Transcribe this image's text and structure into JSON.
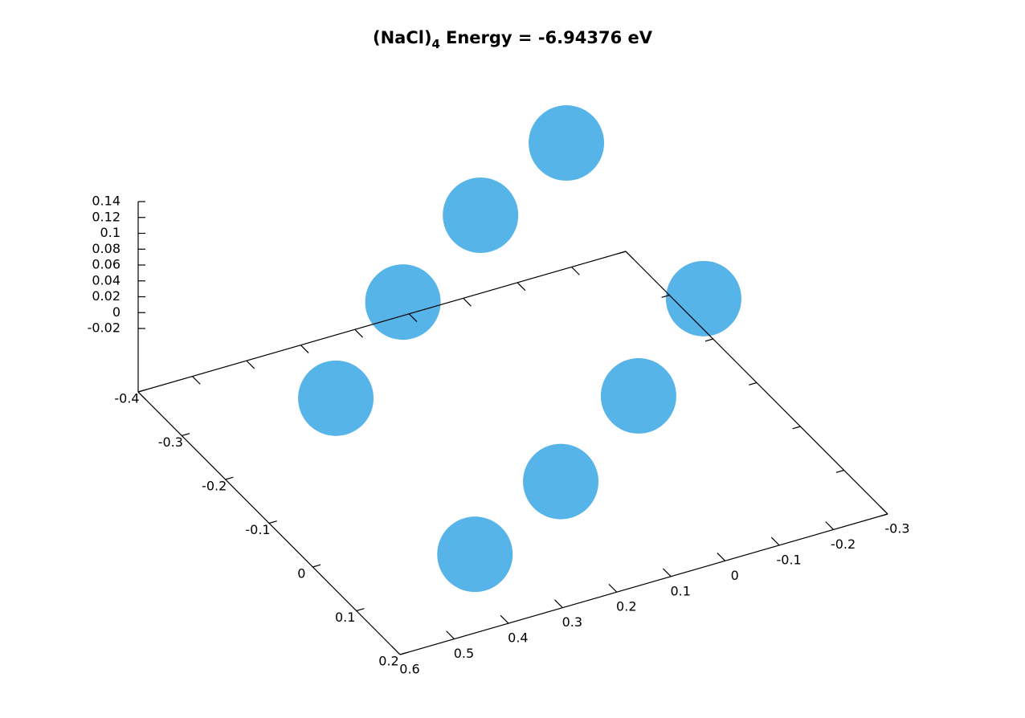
{
  "chart_data": {
    "type": "scatter3d",
    "title": "(NaCl)",
    "title_subscript": "4",
    "title_rest": "Energy = -6.94376 eV",
    "x": [
      -0.299,
      -0.271,
      -0.213,
      -0.147,
      -0.023,
      0.06,
      0.13,
      0.173
    ],
    "y": [
      -0.109,
      0.072,
      0.262,
      0.439,
      -0.14,
      0.047,
      0.247,
      0.44
    ],
    "z": [
      0.13,
      0.09,
      0.05,
      0.0,
      0.08,
      0.04,
      0.01,
      -0.02
    ],
    "color": "#56b4e9",
    "xlim": [
      -0.4,
      0.2
    ],
    "xticks": [
      -0.4,
      -0.3,
      -0.2,
      -0.1,
      0,
      0.1,
      0.2
    ],
    "ylim": [
      0.6,
      -0.3
    ],
    "yticks": [
      0.6,
      0.5,
      0.4,
      0.3,
      0.2,
      0.1,
      0,
      -0.1,
      -0.2,
      -0.3
    ],
    "zlim": [
      -0.02,
      0.14
    ],
    "zticks": [
      -0.02,
      0,
      0.02,
      0.04,
      0.06,
      0.08,
      0.1,
      0.12,
      0.14
    ]
  }
}
